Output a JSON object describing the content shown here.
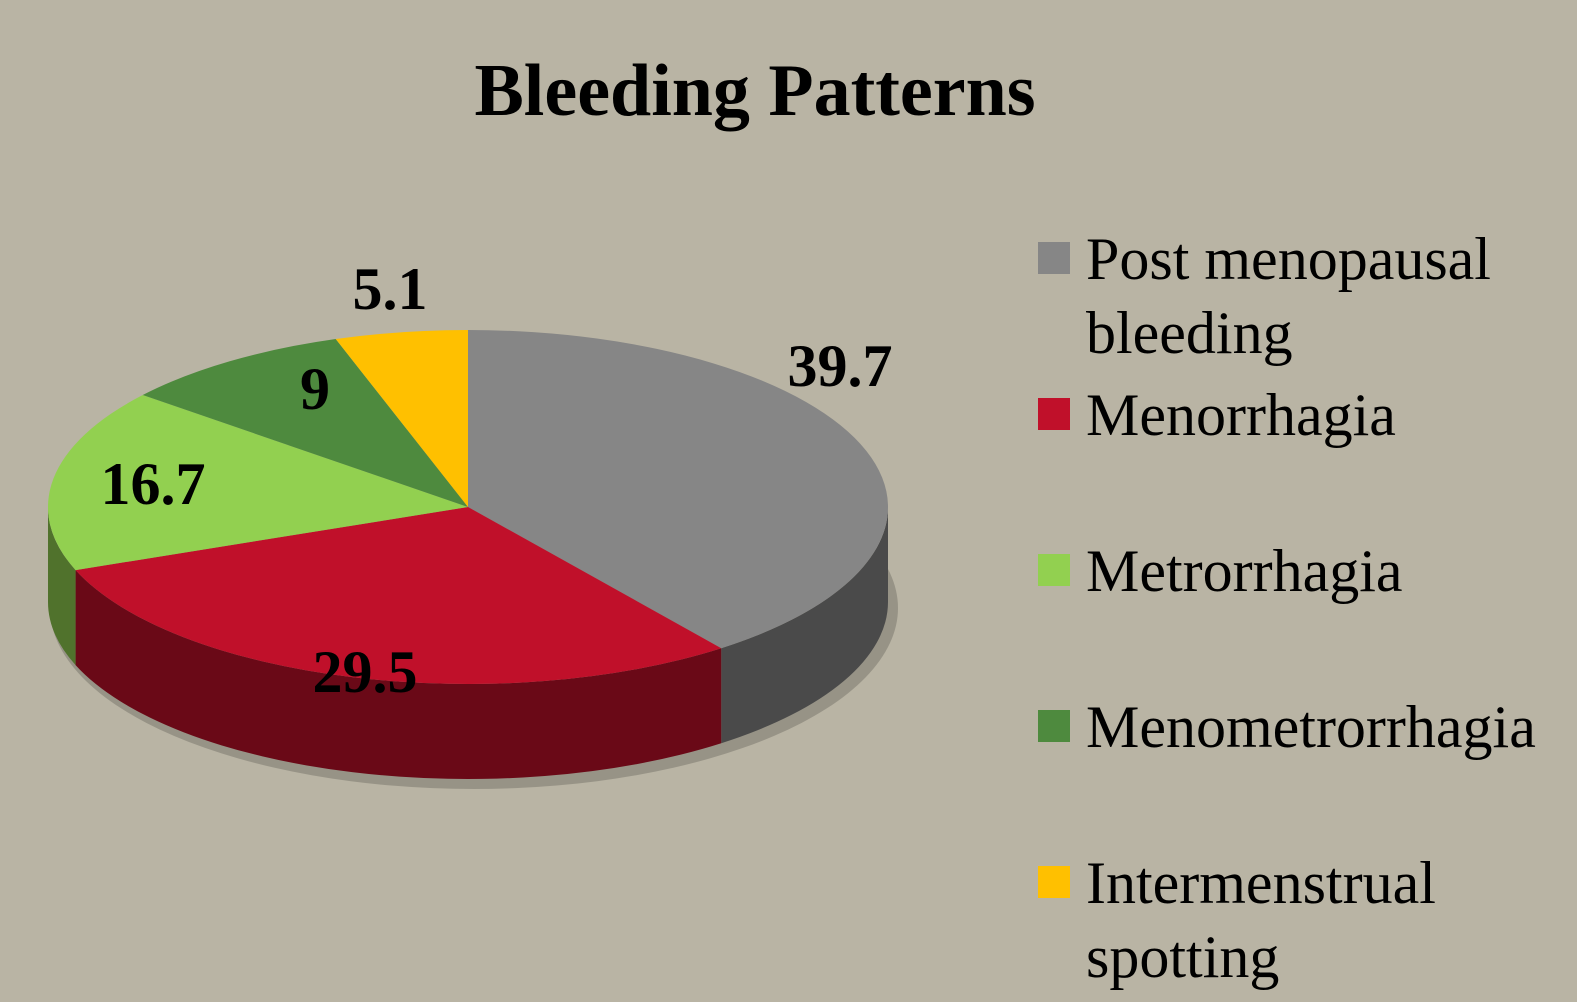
{
  "chart_data": {
    "type": "pie",
    "title": "Bleeding Patterns",
    "categories": [
      "Post menopausal bleeding",
      "Menorrhagia",
      "Metrorrhagia",
      "Menometrorrhagia",
      "Intermenstrual spotting"
    ],
    "values": [
      39.7,
      29.5,
      16.7,
      9,
      5.1
    ],
    "colors": [
      "#868686",
      "#c0102a",
      "#92d050",
      "#4e8a3e",
      "#ffc000"
    ],
    "legend": "right"
  }
}
